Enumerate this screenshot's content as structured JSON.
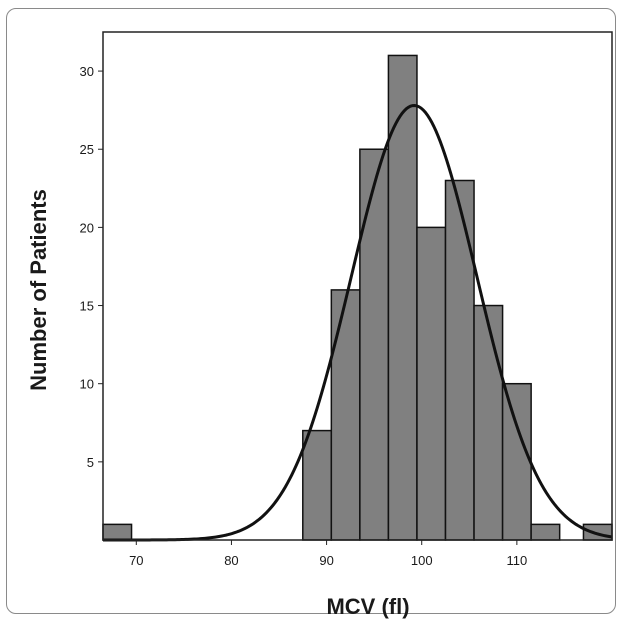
{
  "chart_data": {
    "type": "bar",
    "subtype": "histogram",
    "xlabel": "MCV (fl)",
    "ylabel": "Number of Patients",
    "xlim": [
      66.5,
      120
    ],
    "ylim": [
      0,
      32.5
    ],
    "x_ticks": [
      70,
      80,
      90,
      100,
      110
    ],
    "y_ticks": [
      5,
      10,
      15,
      20,
      25,
      30
    ],
    "bin_width": 3,
    "bins": [
      {
        "start": 66.5,
        "count": 1
      },
      {
        "start": 87.5,
        "count": 7
      },
      {
        "start": 90.5,
        "count": 16
      },
      {
        "start": 93.5,
        "count": 25
      },
      {
        "start": 96.5,
        "count": 31
      },
      {
        "start": 99.5,
        "count": 20
      },
      {
        "start": 102.5,
        "count": 23
      },
      {
        "start": 105.5,
        "count": 15
      },
      {
        "start": 108.5,
        "count": 10
      },
      {
        "start": 111.5,
        "count": 1
      },
      {
        "start": 117.0,
        "count": 1
      }
    ],
    "normal_curve": {
      "mean": 99.2,
      "sd": 6.6,
      "peak": 27.8
    },
    "bar_color": "#808080",
    "bar_edge_color": "#111111",
    "grid": false,
    "legend": "none"
  }
}
